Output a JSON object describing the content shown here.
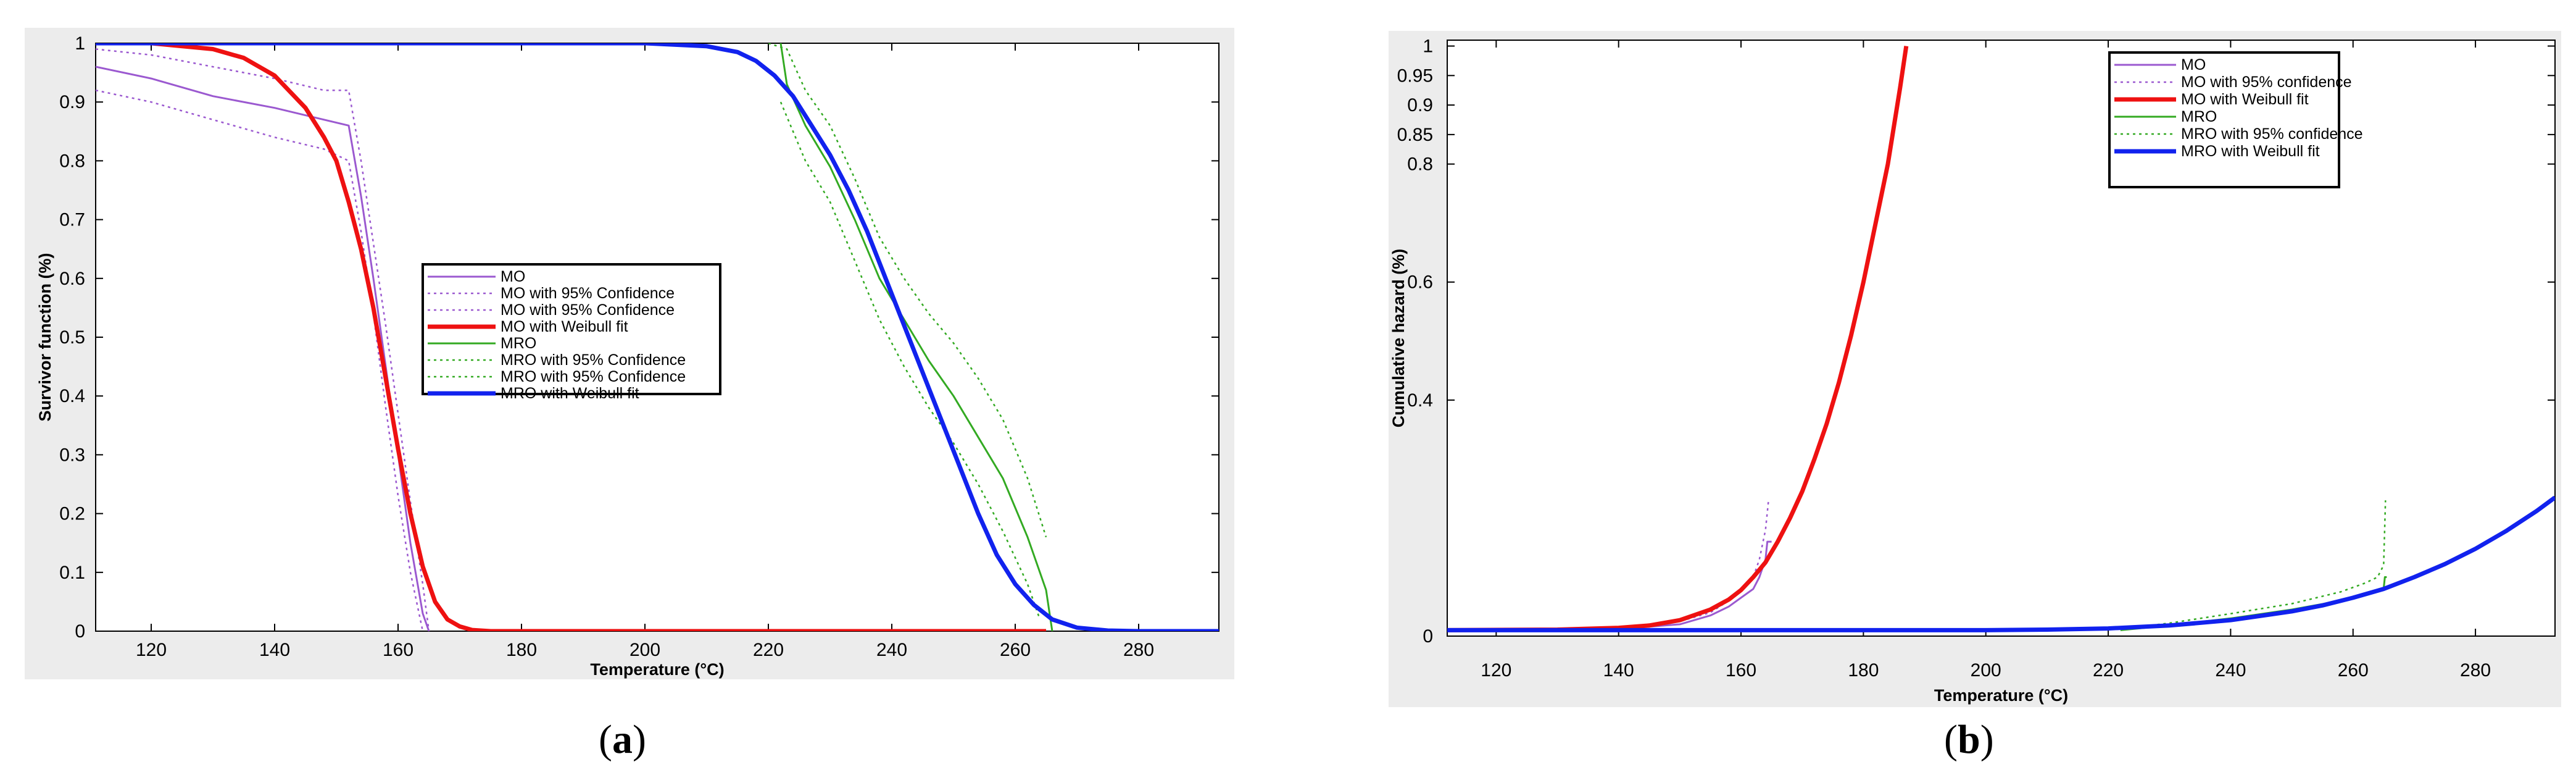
{
  "captions": {
    "a_open": "(",
    "a_letter": "a",
    "a_close": ")",
    "b_open": "(",
    "b_letter": "b",
    "b_close": ")"
  },
  "chart_data": [
    {
      "type": "line",
      "panel": "a",
      "xlabel": "Temperature (°C)",
      "ylabel": "Survivor function (%)",
      "xlim": [
        111,
        293
      ],
      "ylim": [
        0,
        1
      ],
      "xticks": [
        120,
        140,
        160,
        180,
        200,
        220,
        240,
        260,
        280
      ],
      "yticks": [
        0,
        0.1,
        0.2,
        0.3,
        0.4,
        0.5,
        0.6,
        0.7,
        0.8,
        0.9,
        1
      ],
      "legend_position": "center",
      "series": [
        {
          "name": "MO",
          "color": "#9b59d0",
          "style": "solid-step",
          "x": [
            111,
            120,
            130,
            140,
            148,
            152,
            154,
            156,
            158,
            160,
            162,
            164,
            165
          ],
          "y": [
            0.96,
            0.94,
            0.91,
            0.89,
            0.87,
            0.86,
            0.74,
            0.6,
            0.45,
            0.3,
            0.15,
            0.03,
            0
          ]
        },
        {
          "name": "MO with 95% Confidence",
          "color": "#9b59d0",
          "style": "dotted",
          "x": [
            111,
            120,
            130,
            140,
            148,
            152,
            154,
            156,
            158,
            160,
            162,
            164,
            165
          ],
          "y": [
            0.99,
            0.98,
            0.96,
            0.94,
            0.92,
            0.92,
            0.8,
            0.66,
            0.52,
            0.37,
            0.22,
            0.08,
            0
          ]
        },
        {
          "name": "MO with 95% Confidence",
          "color": "#9b59d0",
          "style": "dotted",
          "x": [
            111,
            120,
            130,
            140,
            148,
            152,
            154,
            156,
            158,
            160,
            162,
            164
          ],
          "y": [
            0.92,
            0.9,
            0.87,
            0.84,
            0.82,
            0.8,
            0.68,
            0.54,
            0.38,
            0.23,
            0.1,
            0
          ]
        },
        {
          "name": "MO with Weibull fit",
          "color": "#ee1111",
          "style": "thick",
          "x": [
            111,
            120,
            130,
            135,
            140,
            145,
            148,
            150,
            152,
            154,
            156,
            158,
            160,
            162,
            164,
            166,
            168,
            170,
            172,
            175,
            180,
            190,
            220,
            265
          ],
          "y": [
            1.0,
            1.0,
            0.99,
            0.975,
            0.945,
            0.89,
            0.84,
            0.8,
            0.73,
            0.65,
            0.55,
            0.43,
            0.31,
            0.2,
            0.11,
            0.05,
            0.02,
            0.008,
            0.002,
            0,
            0,
            0,
            0,
            0
          ]
        },
        {
          "name": "MRO",
          "color": "#33aa22",
          "style": "solid-step",
          "x": [
            222,
            223,
            226,
            230,
            234,
            238,
            242,
            246,
            250,
            254,
            258,
            262,
            264,
            265,
            266
          ],
          "y": [
            1.0,
            0.93,
            0.86,
            0.79,
            0.7,
            0.6,
            0.53,
            0.46,
            0.4,
            0.33,
            0.26,
            0.16,
            0.1,
            0.07,
            0.0
          ]
        },
        {
          "name": "MRO with 95% Confidence",
          "color": "#33aa22",
          "style": "dotted",
          "x": [
            220,
            223,
            226,
            230,
            234,
            238,
            242,
            246,
            250,
            254,
            258,
            262,
            265
          ],
          "y": [
            1.0,
            0.99,
            0.92,
            0.86,
            0.77,
            0.67,
            0.6,
            0.54,
            0.49,
            0.43,
            0.36,
            0.26,
            0.16
          ]
        },
        {
          "name": "MRO with 95% Confidence",
          "color": "#33aa22",
          "style": "dotted",
          "x": [
            222,
            226,
            230,
            234,
            238,
            242,
            246,
            250,
            254,
            258,
            262,
            264
          ],
          "y": [
            0.9,
            0.8,
            0.73,
            0.63,
            0.53,
            0.45,
            0.38,
            0.32,
            0.25,
            0.17,
            0.08,
            0.02
          ]
        },
        {
          "name": "MRO with Weibull fit",
          "color": "#1122ee",
          "style": "thick",
          "x": [
            111,
            180,
            200,
            210,
            215,
            218,
            221,
            224,
            227,
            230,
            233,
            236,
            239,
            242,
            245,
            248,
            251,
            254,
            257,
            260,
            263,
            266,
            270,
            275,
            280,
            293
          ],
          "y": [
            1.0,
            1.0,
            1.0,
            0.995,
            0.985,
            0.97,
            0.945,
            0.91,
            0.86,
            0.81,
            0.75,
            0.68,
            0.6,
            0.52,
            0.44,
            0.36,
            0.28,
            0.2,
            0.13,
            0.08,
            0.045,
            0.02,
            0.006,
            0.001,
            0,
            0
          ]
        }
      ]
    },
    {
      "type": "line",
      "panel": "b",
      "xlabel": "Temperature (°C)",
      "ylabel": "Cumulative hazard (%)",
      "xlim": [
        112,
        293
      ],
      "ylim": [
        0,
        1.01
      ],
      "xticks": [
        120,
        140,
        160,
        180,
        200,
        220,
        240,
        260,
        280
      ],
      "ytick_values": [
        0,
        0.4,
        0.6,
        0.8,
        0.85,
        0.9,
        0.95,
        1
      ],
      "ytick_labels": [
        "0",
        "0.4",
        "0.6",
        "0.8",
        "0.85",
        "0.9",
        "0.95",
        "1"
      ],
      "legend_position": "top-right",
      "series": [
        {
          "name": "MO",
          "color": "#9b59d0",
          "style": "solid",
          "x": [
            112,
            140,
            150,
            155,
            158,
            160,
            162,
            163,
            164,
            164.3,
            164.6,
            165
          ],
          "y": [
            0.01,
            0.012,
            0.02,
            0.035,
            0.05,
            0.065,
            0.08,
            0.1,
            0.13,
            0.16,
            0.16,
            0.16
          ]
        },
        {
          "name": "MO with 95% confidence",
          "color": "#9b59d0",
          "style": "dotted",
          "x": [
            112,
            140,
            150,
            155,
            158,
            160,
            162,
            163,
            164,
            164.5
          ],
          "y": [
            0.01,
            0.014,
            0.025,
            0.04,
            0.06,
            0.08,
            0.1,
            0.13,
            0.18,
            0.23
          ]
        },
        {
          "name": "MO with Weibull fit",
          "color": "#ee1111",
          "style": "thick",
          "x": [
            112,
            130,
            140,
            145,
            150,
            155,
            158,
            160,
            162,
            164,
            166,
            168,
            170,
            172,
            174,
            176,
            178,
            180,
            182,
            184,
            186,
            187
          ],
          "y": [
            0.01,
            0.011,
            0.014,
            0.018,
            0.027,
            0.045,
            0.062,
            0.078,
            0.1,
            0.125,
            0.16,
            0.2,
            0.245,
            0.3,
            0.36,
            0.43,
            0.51,
            0.6,
            0.7,
            0.8,
            0.93,
            1.0
          ]
        },
        {
          "name": "MRO",
          "color": "#33aa22",
          "style": "solid",
          "x": [
            222,
            230,
            240,
            250,
            258,
            262,
            264,
            265,
            265.2,
            265.5
          ],
          "y": [
            0.01,
            0.018,
            0.03,
            0.045,
            0.06,
            0.07,
            0.075,
            0.08,
            0.1,
            0.1
          ]
        },
        {
          "name": "MRO with 95% confidence",
          "color": "#33aa22",
          "style": "dotted",
          "x": [
            222,
            230,
            240,
            250,
            258,
            262,
            264,
            265,
            265.3
          ],
          "y": [
            0.012,
            0.022,
            0.038,
            0.055,
            0.075,
            0.09,
            0.1,
            0.12,
            0.23
          ]
        },
        {
          "name": "MRO with Weibull fit",
          "color": "#1122ee",
          "style": "thick",
          "x": [
            112,
            200,
            210,
            220,
            230,
            240,
            250,
            255,
            260,
            265,
            270,
            275,
            280,
            285,
            290,
            293
          ],
          "y": [
            0.01,
            0.01,
            0.011,
            0.013,
            0.018,
            0.027,
            0.042,
            0.052,
            0.065,
            0.08,
            0.1,
            0.122,
            0.148,
            0.178,
            0.212,
            0.235
          ]
        }
      ]
    }
  ]
}
